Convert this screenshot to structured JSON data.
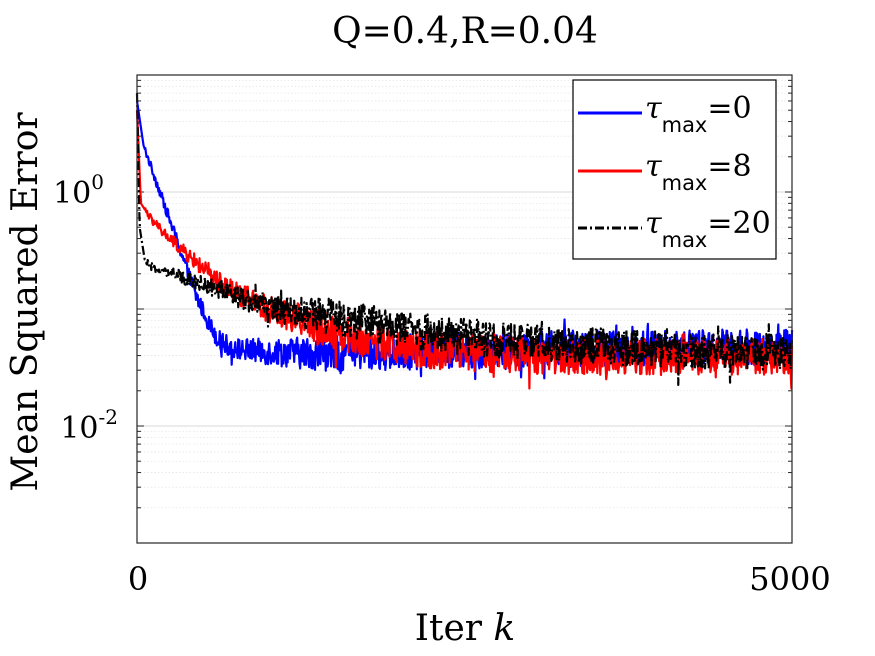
{
  "chart_data": {
    "type": "line",
    "title": "Q=0.4,R=0.04",
    "xlabel": "Iter",
    "xlabel_var": "k",
    "ylabel": "Mean Squared Error",
    "xscale": "linear",
    "yscale": "log",
    "xlim": [
      0,
      5000
    ],
    "ylim": [
      0.001,
      10
    ],
    "x_ticks": [
      0,
      5000
    ],
    "x_tick_labels": [
      "0",
      "5000"
    ],
    "y_ticks": [
      1,
      0.01
    ],
    "y_tick_labels": [
      {
        "base": "10",
        "exp": "0"
      },
      {
        "base": "10",
        "exp": "-2"
      }
    ],
    "grid": true,
    "legend_position": "top-right",
    "series": [
      {
        "name": "τmax=0",
        "legend_symbol": "τ",
        "legend_sub": "max",
        "legend_value": "=0",
        "color": "#0000ff",
        "style": "solid",
        "x": [
          0,
          50,
          150,
          300,
          450,
          550,
          620,
          700,
          800,
          1000,
          1300,
          1600,
          2000,
          2500,
          3000,
          3500,
          4000,
          4500,
          5000
        ],
        "y": [
          6.0,
          2.5,
          1.2,
          0.4,
          0.13,
          0.075,
          0.055,
          0.048,
          0.045,
          0.043,
          0.042,
          0.042,
          0.043,
          0.044,
          0.045,
          0.046,
          0.046,
          0.047,
          0.047
        ]
      },
      {
        "name": "τmax=8",
        "legend_symbol": "τ",
        "legend_sub": "max",
        "legend_value": "=8",
        "color": "#ff0000",
        "style": "solid",
        "x": [
          0,
          30,
          100,
          200,
          400,
          600,
          800,
          1000,
          1200,
          1400,
          1600,
          1800,
          2000,
          2200,
          2500,
          3000,
          3500,
          4000,
          4500,
          5000
        ],
        "y": [
          5.0,
          0.8,
          0.6,
          0.45,
          0.28,
          0.18,
          0.13,
          0.1,
          0.085,
          0.07,
          0.06,
          0.053,
          0.048,
          0.045,
          0.042,
          0.04,
          0.039,
          0.039,
          0.039,
          0.039
        ]
      },
      {
        "name": "τmax=20",
        "legend_symbol": "τ",
        "legend_sub": "max",
        "legend_value": "=20",
        "color": "#000000",
        "style": "dashdot",
        "x": [
          0,
          20,
          60,
          100,
          200,
          400,
          600,
          800,
          1000,
          1200,
          1500,
          1800,
          2000,
          2500,
          3000,
          3500,
          4000,
          4500,
          5000
        ],
        "y": [
          7.0,
          0.5,
          0.26,
          0.23,
          0.21,
          0.18,
          0.15,
          0.125,
          0.105,
          0.095,
          0.085,
          0.075,
          0.068,
          0.058,
          0.052,
          0.048,
          0.045,
          0.044,
          0.043
        ]
      }
    ]
  }
}
